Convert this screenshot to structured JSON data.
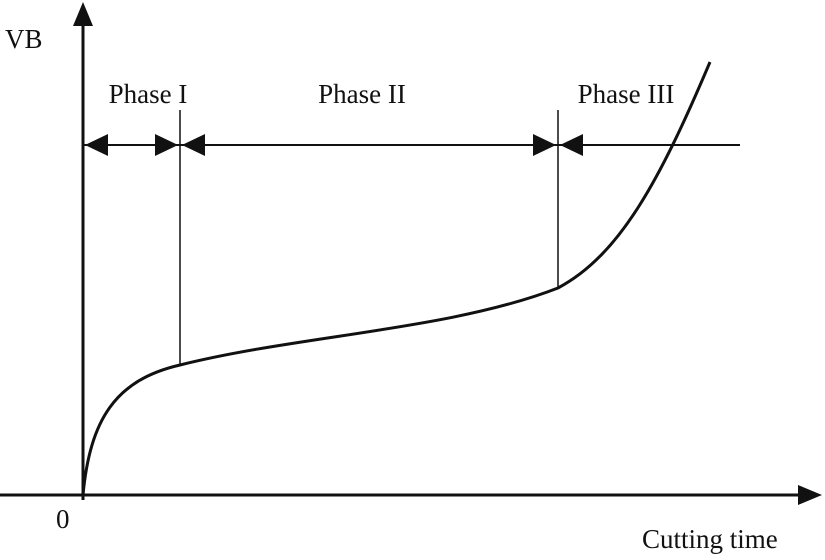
{
  "axes": {
    "y_label": "VB",
    "x_label": "Cutting time",
    "origin": "0"
  },
  "phases": [
    {
      "label": "Phase I"
    },
    {
      "label": "Phase II"
    },
    {
      "label": "Phase III"
    }
  ]
}
